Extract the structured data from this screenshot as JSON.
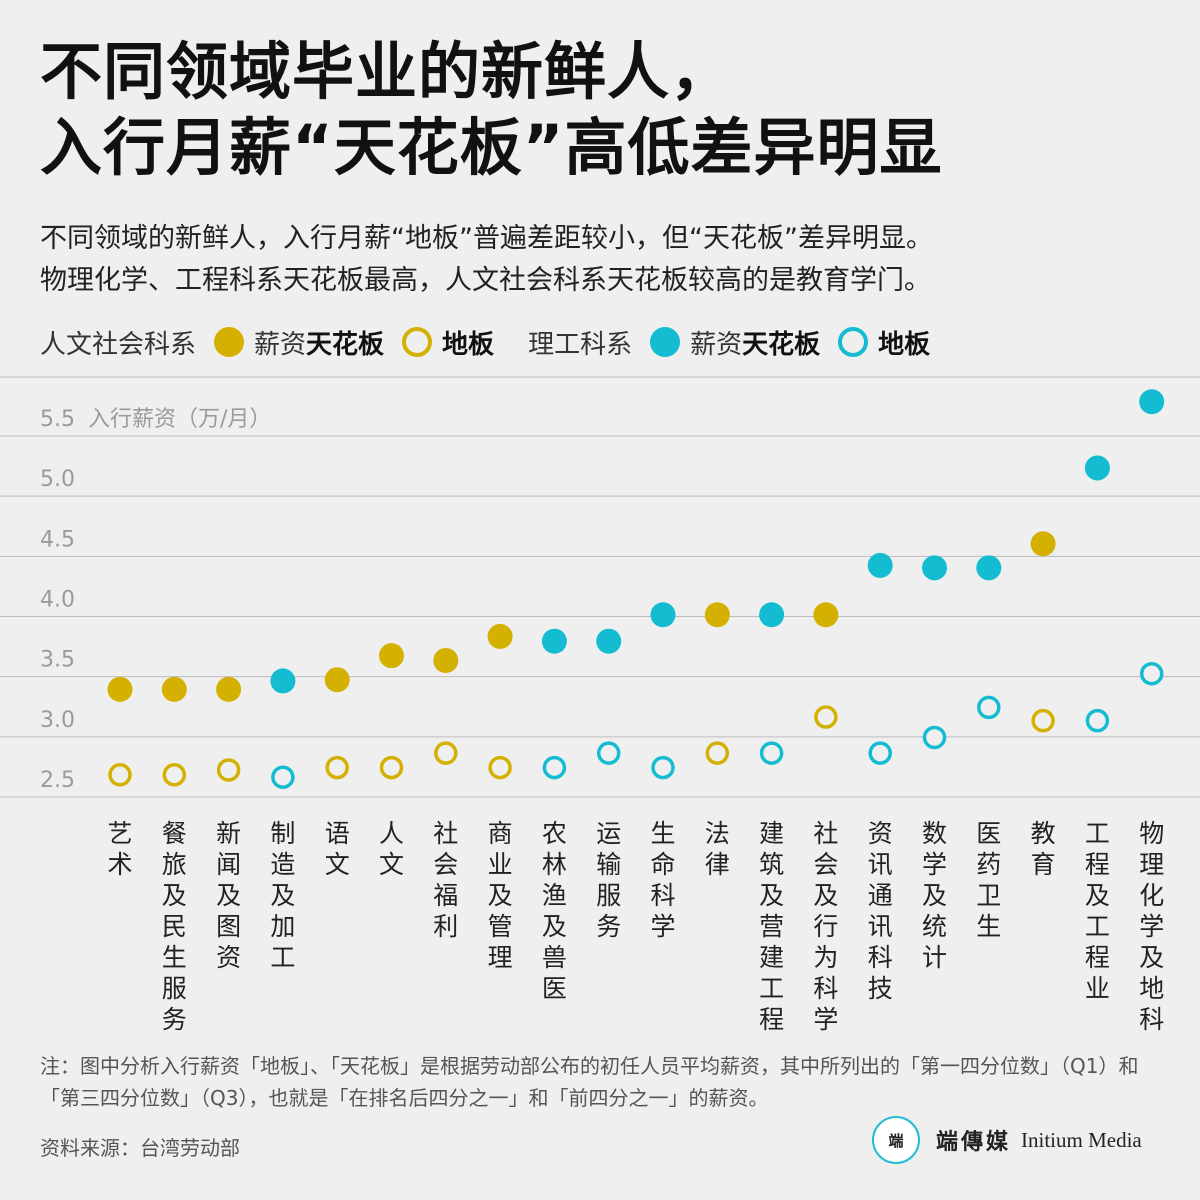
{
  "title": {
    "line1": "不同领域毕业的新鲜人，",
    "line2": "入行月薪“天花板”高低差异明显"
  },
  "subtitle": {
    "line1": "不同领域的新鲜人，入行月薪“地板”普遍差距较小，但“天花板”差异明显。",
    "line2": "物理化学、工程科系天花板最高，人文社会科系天花板较高的是教育学门。"
  },
  "legend": {
    "humanities_group": "人文社会科系",
    "science_group": "理工科系",
    "ceiling_prefix": "薪资",
    "ceiling": "天花板",
    "floor": "地板"
  },
  "colors": {
    "humanities": "#d4b000",
    "science": "#14bcd2",
    "grid": "#bdbdbd",
    "axis_text": "#9a9a9a"
  },
  "chart_data": {
    "type": "scatter",
    "ylabel": "入行薪资（万/月）",
    "ylim": [
      2.5,
      5.5
    ],
    "yticks": [
      "2.5",
      "3.0",
      "3.5",
      "4.0",
      "4.5",
      "5.0",
      "5.5"
    ],
    "legend_position": "top",
    "grid": true,
    "categories": [
      "艺术",
      "餐旅及民生服务",
      "新闻及图资",
      "制造及加工",
      "语文",
      "人文",
      "社会福利",
      "商业及管理",
      "农林渔及兽医",
      "运输服务",
      "生命科学",
      "法律",
      "建筑及营建工程",
      "社会及行为科学",
      "资讯通讯科技",
      "数学及统计",
      "医药卫生",
      "教育",
      "工程及工程业",
      "物理化学及地科"
    ],
    "group": [
      "humanities",
      "humanities",
      "humanities",
      "science",
      "humanities",
      "humanities",
      "humanities",
      "humanities",
      "science",
      "science",
      "science",
      "humanities",
      "science",
      "humanities",
      "science",
      "science",
      "science",
      "humanities",
      "science",
      "science"
    ],
    "series": [
      {
        "name": "天花板",
        "values": [
          3.22,
          3.22,
          3.22,
          3.29,
          3.3,
          3.5,
          3.46,
          3.66,
          3.62,
          3.62,
          3.84,
          3.84,
          3.84,
          3.84,
          4.25,
          4.23,
          4.23,
          4.43,
          5.06,
          5.61
        ]
      },
      {
        "name": "地板",
        "values": [
          2.51,
          2.51,
          2.55,
          2.49,
          2.57,
          2.57,
          2.69,
          2.57,
          2.57,
          2.69,
          2.57,
          2.69,
          2.69,
          2.99,
          2.69,
          2.82,
          3.07,
          2.96,
          2.96,
          3.35
        ]
      }
    ]
  },
  "note": "注：图中分析入行薪资「地板」、「天花板」是根据劳动部公布的初任人员平均薪资，其中所列出的「第一四分位数」（Q1）和「第三四分位数」（Q3），也就是「在排名后四分之一」和「前四分之一」的薪资。",
  "source": "资料来源：台湾劳动部",
  "brand": {
    "logo_text": "端",
    "name_cn": "端傳媒",
    "name_en": "Initium Media"
  }
}
